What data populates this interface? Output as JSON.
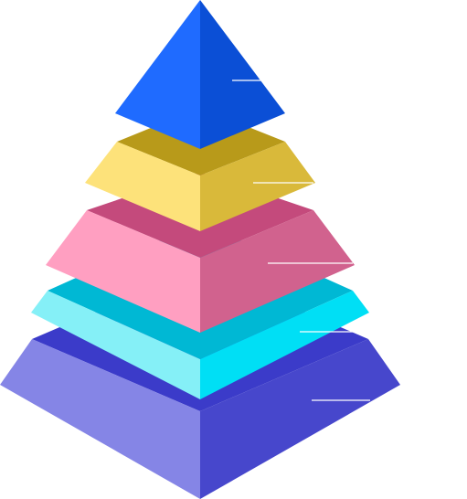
{
  "diagram": {
    "type": "layered-pyramid",
    "layers": [
      {
        "id": "tier-1",
        "top": "#1f6bff",
        "left": "#1f6bff",
        "right": "#0b4fd6",
        "leader": "#ffffff"
      },
      {
        "id": "tier-2",
        "top": "#b89a1a",
        "left": "#fde27a",
        "right": "#d9b93a",
        "leader": "#ffffff"
      },
      {
        "id": "tier-3",
        "top": "#c44a7c",
        "left": "#ff9fc1",
        "right": "#d1628e",
        "leader": "#ffffff"
      },
      {
        "id": "tier-4",
        "top": "#00b8d4",
        "left": "#85f0f7",
        "right": "#00dff5",
        "leader": "#ffffff"
      },
      {
        "id": "tier-5",
        "top": "#3b3bc9",
        "left": "#8585e6",
        "right": "#4747cc",
        "leader": "#ffffff"
      }
    ]
  }
}
